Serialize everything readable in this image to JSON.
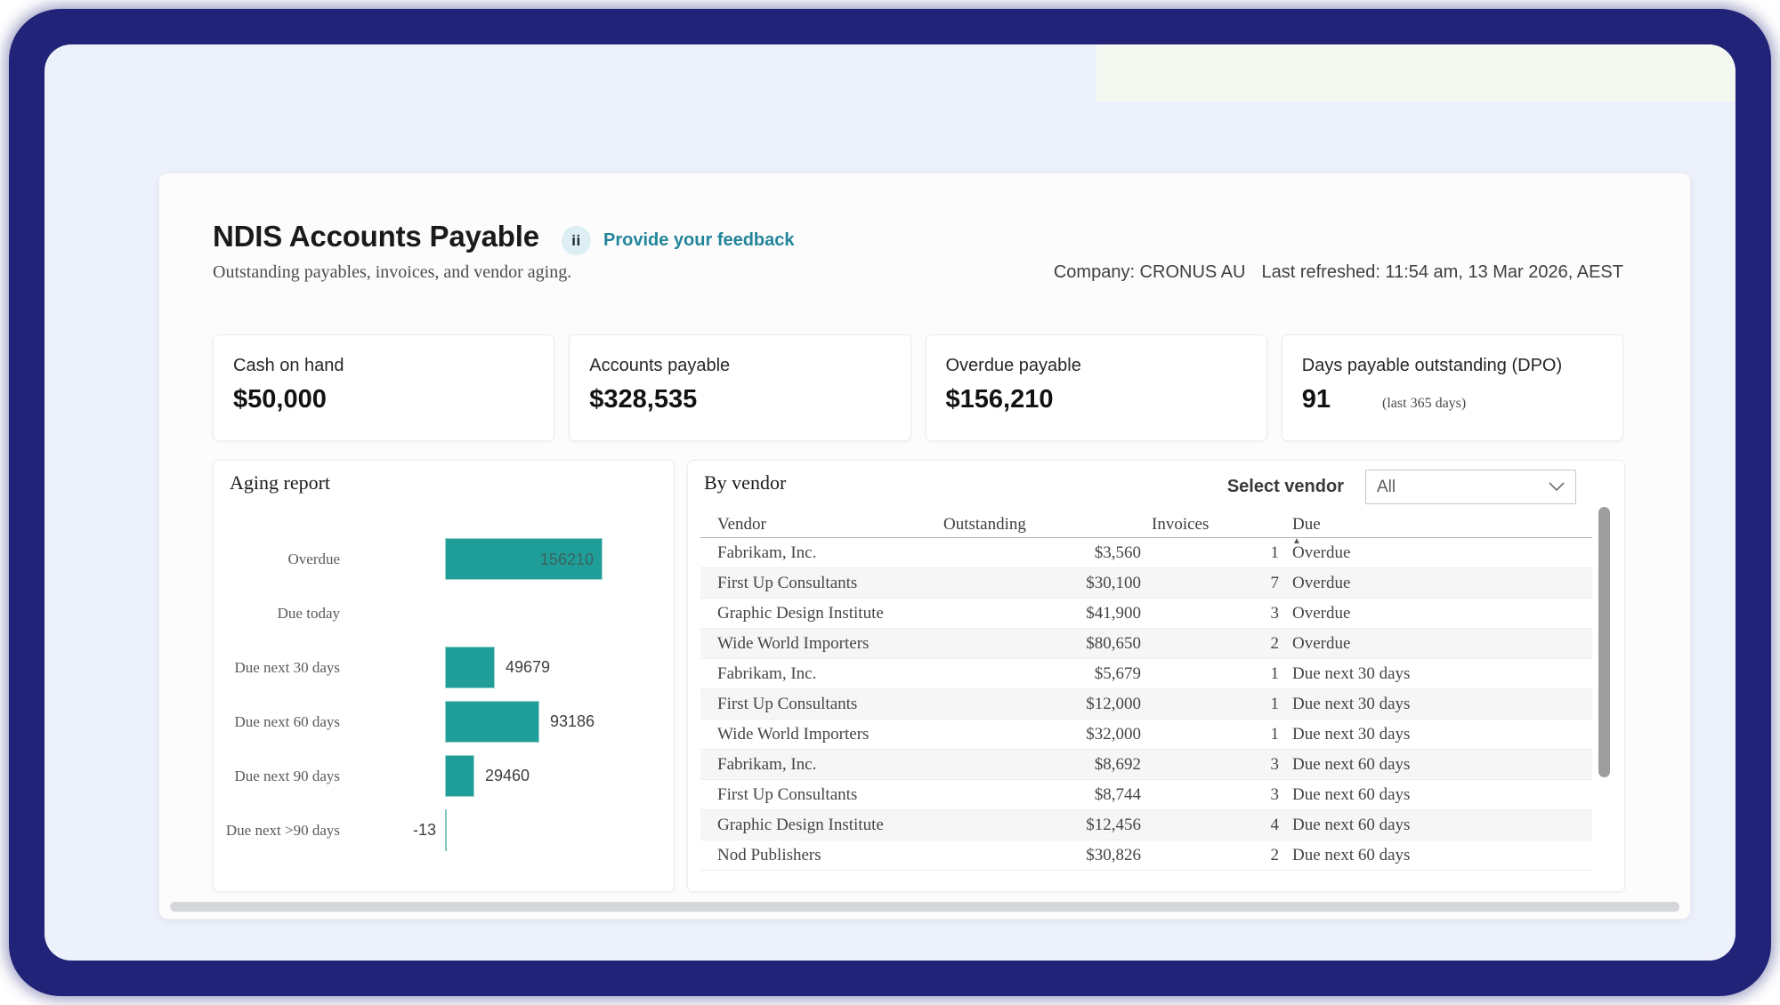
{
  "header": {
    "title": "NDIS Accounts Payable",
    "subtitle": "Outstanding payables, invoices, and vendor aging.",
    "feedback_icon_glyph": "ii",
    "feedback_link": "Provide your feedback",
    "company_label": "Company: CRONUS AU",
    "refreshed_label": "Last refreshed: 11:54 am, 13 Mar 2026, AEST"
  },
  "kpis": [
    {
      "label": "Cash on hand",
      "value": "$50,000"
    },
    {
      "label": "Accounts payable",
      "value": "$328,535"
    },
    {
      "label": "Overdue payable",
      "value": "$156,210"
    },
    {
      "label": "Days payable outstanding (DPO)",
      "value": "91",
      "note": "(last 365 days)"
    }
  ],
  "aging_panel": {
    "title": "Aging report"
  },
  "chart_data": {
    "type": "bar",
    "orientation": "horizontal",
    "title": "Aging report",
    "categories": [
      "Overdue",
      "Due today",
      "Due next 30 days",
      "Due next 60 days",
      "Due next 90 days",
      "Due next >90 days"
    ],
    "values": [
      156210,
      0,
      49679,
      93186,
      29460,
      -13
    ],
    "value_labels": [
      "156210",
      "",
      "49679",
      "93186",
      "29460",
      "-13"
    ],
    "xlim": [
      0,
      160000
    ],
    "grid": false,
    "bar_color": "#1f9d98",
    "legend": "none"
  },
  "vendor_panel": {
    "title": "By vendor",
    "select_label": "Select vendor",
    "select_value": "All",
    "columns": [
      "Vendor",
      "Outstanding",
      "Invoices",
      "Due"
    ],
    "sort_column": "Due",
    "sort_indicator": "▲",
    "rows": [
      {
        "vendor": "Fabrikam, Inc.",
        "outstanding": "$3,560",
        "invoices": "1",
        "due": "Overdue"
      },
      {
        "vendor": "First Up Consultants",
        "outstanding": "$30,100",
        "invoices": "7",
        "due": "Overdue"
      },
      {
        "vendor": "Graphic Design Institute",
        "outstanding": "$41,900",
        "invoices": "3",
        "due": "Overdue"
      },
      {
        "vendor": "Wide World Importers",
        "outstanding": "$80,650",
        "invoices": "2",
        "due": "Overdue"
      },
      {
        "vendor": "Fabrikam, Inc.",
        "outstanding": "$5,679",
        "invoices": "1",
        "due": "Due next 30 days"
      },
      {
        "vendor": "First Up Consultants",
        "outstanding": "$12,000",
        "invoices": "1",
        "due": "Due next 30 days"
      },
      {
        "vendor": "Wide World Importers",
        "outstanding": "$32,000",
        "invoices": "1",
        "due": "Due next 30 days"
      },
      {
        "vendor": "Fabrikam, Inc.",
        "outstanding": "$8,692",
        "invoices": "3",
        "due": "Due next 60 days"
      },
      {
        "vendor": "First Up Consultants",
        "outstanding": "$8,744",
        "invoices": "3",
        "due": "Due next 60 days"
      },
      {
        "vendor": "Graphic Design Institute",
        "outstanding": "$12,456",
        "invoices": "4",
        "due": "Due next 60 days"
      },
      {
        "vendor": "Nod Publishers",
        "outstanding": "$30,826",
        "invoices": "2",
        "due": "Due next 60 days"
      }
    ]
  },
  "colors": {
    "accent_teal": "#1f9d98",
    "link_teal": "#22859a",
    "frame_navy": "#212378",
    "page_lavender": "#edf1fb",
    "band_offwhite": "#f5f7f1",
    "row_stripe": "#f6f6f7"
  }
}
